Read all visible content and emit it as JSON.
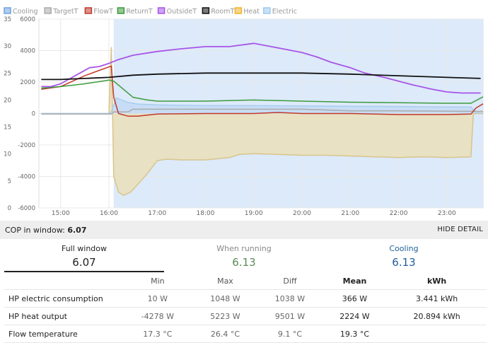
{
  "legend": [
    {
      "label": "Cooling",
      "color": "#6ea4df"
    },
    {
      "label": "TargetT",
      "color": "#aaaaaa"
    },
    {
      "label": "FlowT",
      "color": "#c0392b"
    },
    {
      "label": "ReturnT",
      "color": "#3c9a3c"
    },
    {
      "label": "OutsideT",
      "color": "#a855e8"
    },
    {
      "label": "RoomT",
      "color": "#111111"
    },
    {
      "label": "Heat",
      "color": "#f0b429"
    },
    {
      "label": "Electric",
      "color": "#9cc8f0"
    }
  ],
  "chart_data": {
    "type": "line",
    "x_ticks": [
      "15:00",
      "16:00",
      "17:00",
      "18:00",
      "19:00",
      "20:00",
      "21:00",
      "22:00",
      "23:00"
    ],
    "x_range_hours": [
      14.55,
      23.75
    ],
    "left_axis": {
      "ticks": [
        "0",
        "5",
        "10",
        "15",
        "20",
        "25",
        "30",
        "35"
      ],
      "range": [
        0,
        35
      ]
    },
    "right_axis": {
      "ticks": [
        "-6000",
        "-4000",
        "-2000",
        "0",
        "2000",
        "4000",
        "6000"
      ],
      "range": [
        -6000,
        6000
      ]
    },
    "cooling_region_hours": [
      16.1,
      23.75
    ],
    "series": [
      {
        "name": "OutsideT",
        "axis": "left",
        "color": "#a855e8",
        "points": [
          [
            14.6,
            22.5
          ],
          [
            14.8,
            22.5
          ],
          [
            15.0,
            23.0
          ],
          [
            15.2,
            24.0
          ],
          [
            15.4,
            25.0
          ],
          [
            15.6,
            26.0
          ],
          [
            15.8,
            26.2
          ],
          [
            16.0,
            26.8
          ],
          [
            16.2,
            27.5
          ],
          [
            16.5,
            28.3
          ],
          [
            17.0,
            29.0
          ],
          [
            17.5,
            29.5
          ],
          [
            18.0,
            29.9
          ],
          [
            18.5,
            29.9
          ],
          [
            19.0,
            30.5
          ],
          [
            19.3,
            30.0
          ],
          [
            19.6,
            29.5
          ],
          [
            20.0,
            28.8
          ],
          [
            20.3,
            28.0
          ],
          [
            20.6,
            27.0
          ],
          [
            21.0,
            26.0
          ],
          [
            21.3,
            25.0
          ],
          [
            21.7,
            24.2
          ],
          [
            22.0,
            23.5
          ],
          [
            22.3,
            22.8
          ],
          [
            22.7,
            22.0
          ],
          [
            23.0,
            21.5
          ],
          [
            23.3,
            21.3
          ],
          [
            23.7,
            21.3
          ]
        ]
      },
      {
        "name": "RoomT",
        "axis": "left",
        "color": "#111111",
        "points": [
          [
            14.6,
            23.8
          ],
          [
            15.0,
            23.8
          ],
          [
            15.5,
            24.0
          ],
          [
            16.0,
            24.2
          ],
          [
            16.5,
            24.6
          ],
          [
            17.0,
            24.8
          ],
          [
            18.0,
            25.0
          ],
          [
            19.0,
            25.0
          ],
          [
            20.0,
            25.0
          ],
          [
            21.0,
            24.8
          ],
          [
            22.0,
            24.5
          ],
          [
            23.0,
            24.2
          ],
          [
            23.7,
            24.0
          ]
        ]
      },
      {
        "name": "FlowT",
        "axis": "left",
        "color": "#c0392b",
        "points": [
          [
            14.6,
            22.0
          ],
          [
            15.0,
            22.5
          ],
          [
            15.5,
            24.5
          ],
          [
            15.8,
            25.5
          ],
          [
            16.05,
            26.3
          ],
          [
            16.1,
            20.5
          ],
          [
            16.2,
            17.5
          ],
          [
            16.4,
            17.0
          ],
          [
            16.6,
            17.0
          ],
          [
            17.0,
            17.4
          ],
          [
            18.0,
            17.5
          ],
          [
            19.0,
            17.5
          ],
          [
            19.5,
            17.7
          ],
          [
            20.0,
            17.5
          ],
          [
            21.0,
            17.5
          ],
          [
            22.0,
            17.3
          ],
          [
            23.0,
            17.3
          ],
          [
            23.5,
            17.4
          ],
          [
            23.6,
            18.5
          ],
          [
            23.75,
            19.3
          ]
        ]
      },
      {
        "name": "ReturnT",
        "axis": "left",
        "color": "#3c9a3c",
        "points": [
          [
            14.6,
            22.2
          ],
          [
            15.0,
            22.5
          ],
          [
            15.5,
            23.0
          ],
          [
            16.0,
            23.7
          ],
          [
            16.1,
            23.5
          ],
          [
            16.3,
            22.0
          ],
          [
            16.5,
            20.5
          ],
          [
            16.8,
            20.0
          ],
          [
            17.0,
            19.8
          ],
          [
            18.0,
            19.8
          ],
          [
            19.0,
            20.0
          ],
          [
            20.0,
            19.8
          ],
          [
            21.0,
            19.6
          ],
          [
            22.0,
            19.5
          ],
          [
            23.0,
            19.4
          ],
          [
            23.5,
            19.4
          ],
          [
            23.75,
            20.6
          ]
        ]
      },
      {
        "name": "TargetT",
        "axis": "left",
        "color": "#aaaaaa",
        "points": [
          [
            14.6,
            17.4
          ],
          [
            16.05,
            17.4
          ],
          [
            16.1,
            17.8
          ],
          [
            16.4,
            17.8
          ],
          [
            16.5,
            18.3
          ],
          [
            19.0,
            18.3
          ],
          [
            20.0,
            18.3
          ],
          [
            21.0,
            18.0
          ],
          [
            22.0,
            18.0
          ],
          [
            23.5,
            17.9
          ],
          [
            23.75,
            17.9
          ]
        ]
      },
      {
        "name": "Electric",
        "axis": "right",
        "color": "#9cc8f0",
        "points": [
          [
            14.6,
            0
          ],
          [
            16.0,
            0
          ],
          [
            16.05,
            100
          ],
          [
            16.15,
            1000
          ],
          [
            16.4,
            700
          ],
          [
            16.6,
            600
          ],
          [
            17.0,
            550
          ],
          [
            18.0,
            500
          ],
          [
            19.0,
            500
          ],
          [
            20.0,
            480
          ],
          [
            21.0,
            460
          ],
          [
            22.0,
            450
          ],
          [
            23.0,
            420
          ],
          [
            23.5,
            420
          ],
          [
            23.6,
            50
          ],
          [
            23.75,
            50
          ]
        ]
      },
      {
        "name": "Heat",
        "axis": "right",
        "color": "#f0b429",
        "points": [
          [
            14.6,
            0
          ],
          [
            16.0,
            0
          ],
          [
            16.05,
            4200
          ],
          [
            16.1,
            -4000
          ],
          [
            16.2,
            -5000
          ],
          [
            16.3,
            -5200
          ],
          [
            16.45,
            -5000
          ],
          [
            16.6,
            -4500
          ],
          [
            16.8,
            -3800
          ],
          [
            17.0,
            -3000
          ],
          [
            17.2,
            -2900
          ],
          [
            17.5,
            -2950
          ],
          [
            18.0,
            -2950
          ],
          [
            18.5,
            -2800
          ],
          [
            18.7,
            -2600
          ],
          [
            19.0,
            -2550
          ],
          [
            19.5,
            -2600
          ],
          [
            20.0,
            -2650
          ],
          [
            20.5,
            -2650
          ],
          [
            21.0,
            -2700
          ],
          [
            21.5,
            -2750
          ],
          [
            22.0,
            -2800
          ],
          [
            22.5,
            -2750
          ],
          [
            23.0,
            -2800
          ],
          [
            23.5,
            -2750
          ],
          [
            23.55,
            0
          ],
          [
            23.75,
            0
          ]
        ]
      }
    ]
  },
  "cop_bar": {
    "label": "COP in window:",
    "value": "6.07",
    "button": "HIDE DETAIL"
  },
  "tabs": [
    {
      "label": "Full window",
      "value": "6.07"
    },
    {
      "label": "When running",
      "value": "6.13"
    },
    {
      "label": "Cooling",
      "value": "6.13"
    }
  ],
  "table": {
    "headers": [
      "",
      "Min",
      "Max",
      "Diff",
      "Mean",
      "kWh"
    ],
    "rows": [
      {
        "label": "HP electric consumption",
        "min": "10 W",
        "max": "1048 W",
        "diff": "1038 W",
        "mean": "366 W",
        "kwh": "3.441 kWh"
      },
      {
        "label": "HP heat output",
        "min": "-4278 W",
        "max": "5223 W",
        "diff": "9501 W",
        "mean": "2224 W",
        "kwh": "20.894 kWh"
      },
      {
        "label": "Flow temperature",
        "min": "17.3 °C",
        "max": "26.4 °C",
        "diff": "9.1 °C",
        "mean": "19.3 °C",
        "kwh": ""
      }
    ]
  }
}
